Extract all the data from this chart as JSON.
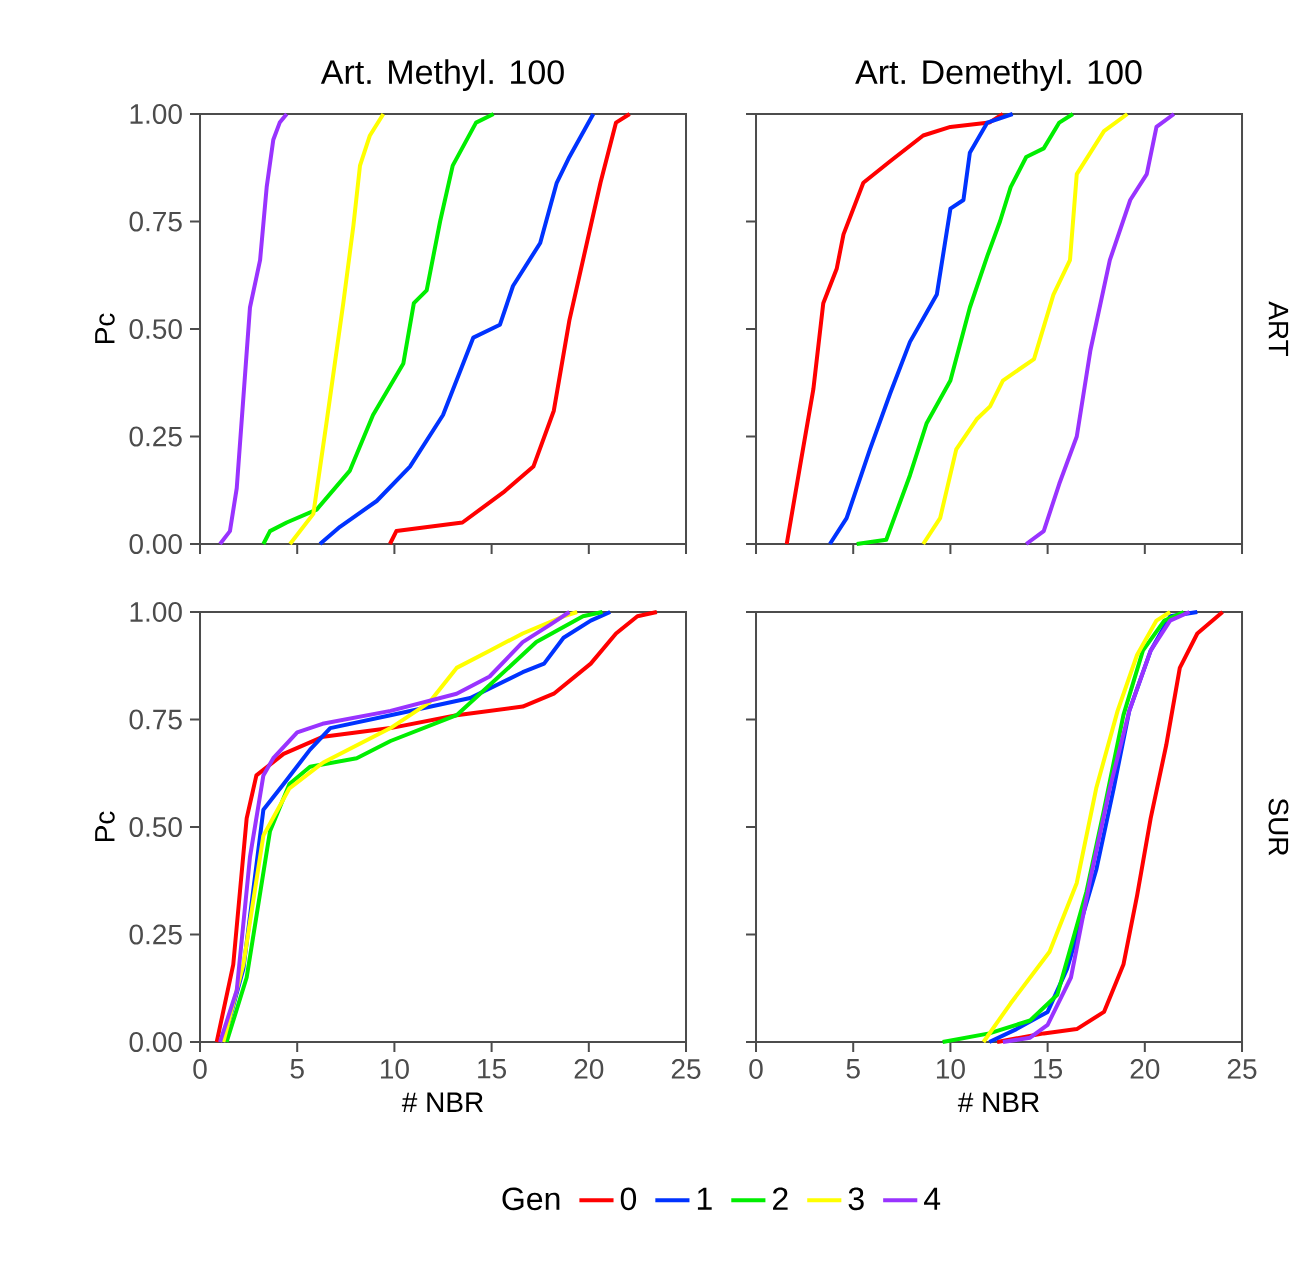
{
  "chart_data": [
    {
      "type": "line",
      "title": "Art. Methyl. 100",
      "ylabel": "Pc",
      "tick_labels": "y",
      "legend": "bottom",
      "legend_title": "Gen",
      "xlim": [
        0,
        25
      ],
      "ylim": [
        0,
        1
      ],
      "xticks": [
        0,
        5,
        10,
        15,
        20,
        25
      ],
      "yticks": [
        {
          "value": 0,
          "label": "0.00"
        },
        {
          "value": 0.25,
          "label": "0.25"
        },
        {
          "value": 0.5,
          "label": "0.50"
        },
        {
          "value": 0.75,
          "label": "0.75"
        },
        {
          "value": 1,
          "label": "1.00"
        }
      ],
      "series": [
        {
          "name": "0",
          "color": "#ff0000",
          "x": [
            9.77,
            10.1,
            13.5,
            15.6,
            17.15,
            18.2,
            19.0,
            19.9,
            20.6,
            21.4,
            22.1
          ],
          "values": [
            0,
            0.03,
            0.05,
            0.12,
            0.18,
            0.31,
            0.52,
            0.7,
            0.84,
            0.98,
            1
          ]
        },
        {
          "name": "1",
          "color": "#0033ff",
          "x": [
            6.17,
            7.2,
            9.09,
            10.8,
            12.5,
            14.06,
            15.43,
            16.1,
            17.5,
            18.35,
            19.0,
            20.23
          ],
          "values": [
            0,
            0.04,
            0.1,
            0.18,
            0.3,
            0.48,
            0.51,
            0.6,
            0.7,
            0.84,
            0.9,
            1
          ]
        },
        {
          "name": "2",
          "color": "#00ee00",
          "x": [
            3.26,
            3.6,
            4.46,
            6.0,
            7.7,
            8.9,
            10.46,
            11.0,
            11.66,
            12.35,
            13.0,
            14.2,
            15.1
          ],
          "values": [
            0,
            0.03,
            0.05,
            0.08,
            0.17,
            0.3,
            0.42,
            0.56,
            0.59,
            0.75,
            0.88,
            0.98,
            1
          ]
        },
        {
          "name": "3",
          "color": "#ffff00",
          "x": [
            4.63,
            5.83,
            6.5,
            7.37,
            7.89,
            8.23,
            8.74,
            9.43
          ],
          "values": [
            0,
            0.07,
            0.28,
            0.56,
            0.74,
            0.88,
            0.95,
            1
          ]
        },
        {
          "name": "4",
          "color": "#9933ff",
          "x": [
            1.03,
            1.54,
            1.89,
            2.57,
            3.09,
            3.43,
            3.77,
            4.1,
            4.46
          ],
          "values": [
            0,
            0.03,
            0.13,
            0.55,
            0.66,
            0.83,
            0.94,
            0.98,
            1
          ]
        }
      ]
    },
    {
      "type": "line",
      "title": "Art. Demethyl. 100",
      "y2label": "ART",
      "tick_labels": false,
      "xlim": [
        0,
        25
      ],
      "ylim": [
        0,
        1
      ],
      "xticks": [
        0,
        5,
        10,
        15,
        20,
        25
      ],
      "yticks": [
        0,
        0.25,
        0.5,
        0.75,
        1
      ],
      "series": [
        {
          "color": "#ff0000",
          "x": [
            1.58,
            2.26,
            2.95,
            3.46,
            4.15,
            4.5,
            5.52,
            6.9,
            8.6,
            10.0,
            12.0,
            12.7
          ],
          "values": [
            0,
            0.18,
            0.36,
            0.56,
            0.64,
            0.72,
            0.84,
            0.89,
            0.95,
            0.97,
            0.98,
            1
          ]
        },
        {
          "color": "#0033ff",
          "x": [
            3.8,
            4.66,
            5.86,
            6.9,
            7.92,
            9.3,
            10.0,
            10.67,
            11.0,
            11.9,
            13.2
          ],
          "values": [
            0,
            0.06,
            0.22,
            0.35,
            0.47,
            0.58,
            0.78,
            0.8,
            0.91,
            0.98,
            1
          ]
        },
        {
          "color": "#00ee00",
          "x": [
            5.18,
            6.7,
            7.92,
            8.77,
            10.0,
            11.0,
            11.9,
            12.55,
            13.1,
            13.9,
            14.8,
            15.6,
            16.3
          ],
          "values": [
            0,
            0.01,
            0.16,
            0.28,
            0.38,
            0.55,
            0.67,
            0.75,
            0.83,
            0.9,
            0.92,
            0.98,
            1
          ]
        },
        {
          "color": "#ffff00",
          "x": [
            8.6,
            9.47,
            10.3,
            11.35,
            12.04,
            12.7,
            14.3,
            15.3,
            16.15,
            16.5,
            17.2,
            17.9,
            19.1
          ],
          "values": [
            0,
            0.06,
            0.22,
            0.29,
            0.32,
            0.38,
            0.43,
            0.58,
            0.66,
            0.86,
            0.91,
            0.96,
            1
          ]
        },
        {
          "color": "#9933ff",
          "x": [
            13.9,
            14.8,
            15.6,
            16.5,
            17.2,
            18.2,
            19.25,
            20.1,
            20.6,
            21.5
          ],
          "values": [
            0,
            0.03,
            0.14,
            0.25,
            0.45,
            0.66,
            0.8,
            0.86,
            0.97,
            1
          ]
        }
      ]
    },
    {
      "type": "line",
      "ylabel": "Pc",
      "xlabel": "# NBR",
      "xlim": [
        0,
        25
      ],
      "ylim": [
        0,
        1
      ],
      "xticks": [
        0,
        5,
        10,
        15,
        20,
        25
      ],
      "yticks": [
        {
          "value": 0,
          "label": "0.00"
        },
        {
          "value": 0.25,
          "label": "0.25"
        },
        {
          "value": 0.5,
          "label": "0.50"
        },
        {
          "value": 0.75,
          "label": "0.75"
        },
        {
          "value": 1,
          "label": "1.00"
        }
      ],
      "series": [
        {
          "color": "#ff0000",
          "x": [
            0.86,
            1.71,
            2.4,
            2.9,
            4.3,
            6.34,
            9.8,
            13.2,
            16.6,
            18.2,
            20.1,
            21.4,
            22.5,
            23.5
          ],
          "values": [
            0,
            0.18,
            0.52,
            0.62,
            0.67,
            0.71,
            0.73,
            0.76,
            0.78,
            0.81,
            0.88,
            0.95,
            0.99,
            1
          ]
        },
        {
          "color": "#0033ff",
          "x": [
            1.2,
            2.23,
            3.26,
            4.3,
            5.66,
            6.7,
            9.8,
            13.9,
            16.6,
            17.7,
            18.7,
            20.1,
            21.1
          ],
          "values": [
            0,
            0.17,
            0.54,
            0.6,
            0.68,
            0.73,
            0.76,
            0.8,
            0.86,
            0.88,
            0.94,
            0.98,
            1
          ]
        },
        {
          "color": "#00ee00",
          "x": [
            1.37,
            2.4,
            3.6,
            4.6,
            5.66,
            8.06,
            9.8,
            13.2,
            14.9,
            17.3,
            19.7,
            20.7
          ],
          "values": [
            0,
            0.15,
            0.49,
            0.6,
            0.64,
            0.66,
            0.7,
            0.76,
            0.83,
            0.93,
            0.99,
            1
          ]
        },
        {
          "color": "#ffff00",
          "x": [
            1.2,
            2.23,
            3.26,
            4.6,
            6.34,
            9.8,
            11.8,
            13.2,
            14.9,
            16.6,
            18.7,
            19.4
          ],
          "values": [
            0,
            0.18,
            0.48,
            0.59,
            0.65,
            0.73,
            0.79,
            0.87,
            0.91,
            0.95,
            0.99,
            1
          ]
        },
        {
          "color": "#9933ff",
          "x": [
            1.03,
            1.89,
            2.57,
            3.26,
            3.77,
            5.0,
            6.3,
            9.8,
            13.2,
            14.9,
            16.6,
            18.0,
            19.0
          ],
          "values": [
            0,
            0.12,
            0.43,
            0.62,
            0.66,
            0.72,
            0.74,
            0.77,
            0.81,
            0.85,
            0.93,
            0.97,
            1
          ]
        }
      ]
    },
    {
      "type": "line",
      "xlabel": "# NBR",
      "y2label": "SUR",
      "tick_labels": "x",
      "xlim": [
        0,
        25
      ],
      "ylim": [
        0,
        1
      ],
      "xticks": [
        0,
        5,
        10,
        15,
        20,
        25
      ],
      "yticks": [
        0,
        0.25,
        0.5,
        0.75,
        1
      ],
      "series": [
        {
          "color": "#ff0000",
          "x": [
            12.4,
            14.8,
            16.5,
            17.9,
            18.9,
            19.6,
            20.3,
            21.1,
            21.8,
            22.7,
            24.0
          ],
          "values": [
            0,
            0.02,
            0.03,
            0.07,
            0.18,
            0.34,
            0.52,
            0.69,
            0.87,
            0.95,
            1
          ]
        },
        {
          "color": "#0033ff",
          "x": [
            12.0,
            13.4,
            15.0,
            16.0,
            17.5,
            18.4,
            19.2,
            20.3,
            21.3,
            22.7
          ],
          "values": [
            0,
            0.03,
            0.07,
            0.17,
            0.4,
            0.59,
            0.77,
            0.91,
            0.99,
            1
          ]
        },
        {
          "color": "#00ee00",
          "x": [
            9.6,
            12.0,
            14.1,
            15.5,
            17.0,
            17.9,
            18.9,
            19.9,
            21.0,
            22.0
          ],
          "values": [
            0,
            0.02,
            0.05,
            0.11,
            0.35,
            0.54,
            0.76,
            0.91,
            0.98,
            1
          ]
        },
        {
          "color": "#ffff00",
          "x": [
            11.7,
            13.1,
            15.1,
            16.5,
            17.5,
            18.6,
            19.6,
            20.6,
            21.3
          ],
          "values": [
            0,
            0.09,
            0.21,
            0.37,
            0.59,
            0.77,
            0.9,
            0.98,
            1
          ]
        },
        {
          "color": "#9933ff",
          "x": [
            12.7,
            14.1,
            15.0,
            16.2,
            17.2,
            18.2,
            19.2,
            20.3,
            21.3,
            22.3
          ],
          "values": [
            0,
            0.01,
            0.04,
            0.15,
            0.38,
            0.59,
            0.77,
            0.91,
            0.98,
            1
          ]
        }
      ]
    }
  ]
}
